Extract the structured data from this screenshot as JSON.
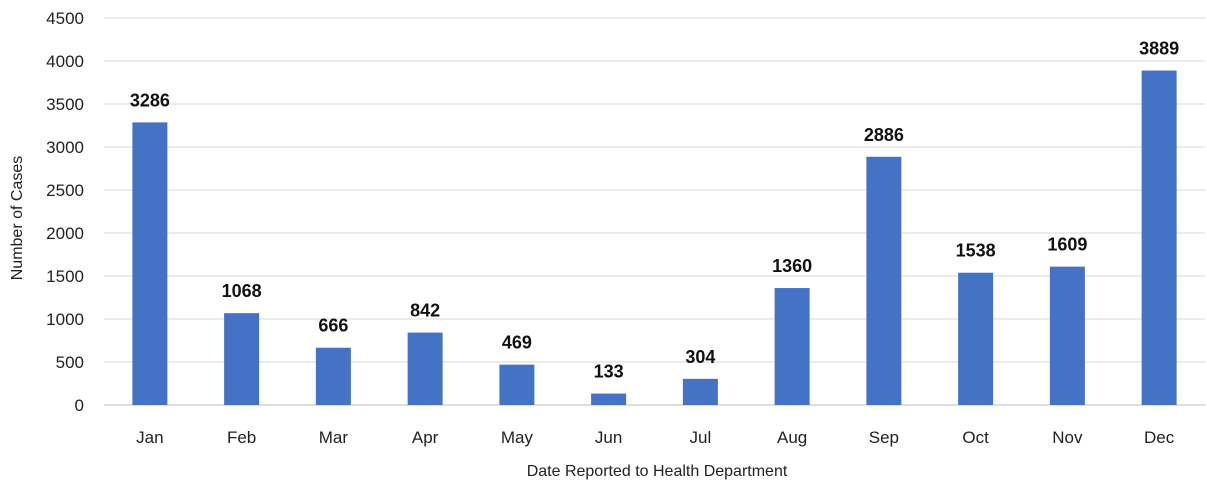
{
  "chart_data": {
    "type": "bar",
    "title": "",
    "xlabel": "Date Reported to Health Department",
    "ylabel": "Number of Cases",
    "categories": [
      "Jan",
      "Feb",
      "Mar",
      "Apr",
      "May",
      "Jun",
      "Jul",
      "Aug",
      "Sep",
      "Oct",
      "Nov",
      "Dec"
    ],
    "values": [
      3286,
      1068,
      666,
      842,
      469,
      133,
      304,
      1360,
      2886,
      1538,
      1609,
      3889
    ],
    "ylim": [
      0,
      4500
    ],
    "yticks": [
      0,
      500,
      1000,
      1500,
      2000,
      2500,
      3000,
      3500,
      4000,
      4500
    ],
    "grid": true,
    "data_labels": true,
    "legend": "none",
    "bar_color": "#4472C4",
    "grid_color": "#D9D9D9"
  }
}
